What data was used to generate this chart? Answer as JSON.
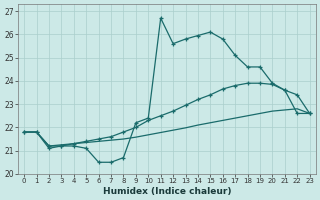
{
  "xlabel": "Humidex (Indice chaleur)",
  "bg_color": "#cce9e7",
  "grid_color": "#aacfcc",
  "line_color": "#1a6b6b",
  "xlim": [
    -0.5,
    23.5
  ],
  "ylim": [
    20.0,
    27.3
  ],
  "xticks": [
    0,
    1,
    2,
    3,
    4,
    5,
    6,
    7,
    8,
    9,
    10,
    11,
    12,
    13,
    14,
    15,
    16,
    17,
    18,
    19,
    20,
    21,
    22,
    23
  ],
  "yticks": [
    20,
    21,
    22,
    23,
    24,
    25,
    26,
    27
  ],
  "curve1_x": [
    0,
    1,
    2,
    3,
    4,
    5,
    6,
    7,
    8,
    9,
    10,
    11,
    12,
    13,
    14,
    15,
    16,
    17,
    18,
    19,
    20,
    21,
    22,
    23
  ],
  "curve1_y": [
    21.8,
    21.8,
    21.1,
    21.2,
    21.2,
    21.1,
    20.5,
    20.5,
    20.7,
    22.2,
    22.4,
    26.7,
    25.6,
    25.8,
    25.95,
    26.1,
    25.8,
    25.1,
    24.6,
    24.6,
    23.9,
    23.6,
    22.6,
    22.6
  ],
  "curve2_x": [
    0,
    1,
    2,
    3,
    4,
    5,
    6,
    7,
    8,
    9,
    10,
    11,
    12,
    13,
    14,
    15,
    16,
    17,
    18,
    19,
    20,
    21,
    22,
    23
  ],
  "curve2_y": [
    21.8,
    21.8,
    21.2,
    21.2,
    21.3,
    21.4,
    21.5,
    21.6,
    21.8,
    22.0,
    22.3,
    22.5,
    22.7,
    22.95,
    23.2,
    23.4,
    23.65,
    23.8,
    23.9,
    23.9,
    23.85,
    23.6,
    23.4,
    22.6
  ],
  "curve3_x": [
    0,
    1,
    2,
    3,
    4,
    5,
    6,
    7,
    8,
    9,
    10,
    11,
    12,
    13,
    14,
    15,
    16,
    17,
    18,
    19,
    20,
    21,
    22,
    23
  ],
  "curve3_y": [
    21.8,
    21.8,
    21.2,
    21.25,
    21.3,
    21.35,
    21.4,
    21.45,
    21.5,
    21.58,
    21.68,
    21.78,
    21.88,
    21.98,
    22.1,
    22.2,
    22.3,
    22.4,
    22.5,
    22.6,
    22.7,
    22.75,
    22.8,
    22.6
  ]
}
